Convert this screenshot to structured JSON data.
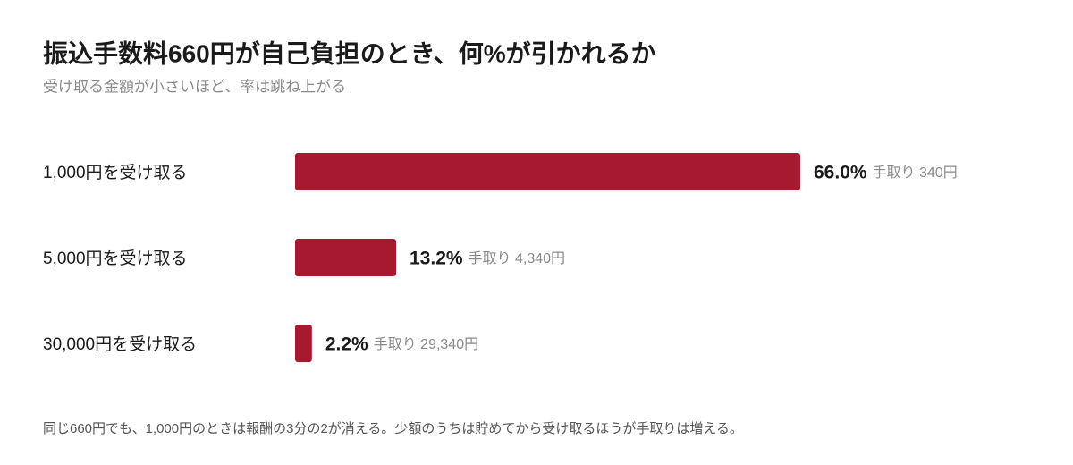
{
  "chart_data": {
    "type": "hbar",
    "title": "振込手数料660円が自己負担のとき、何%が引かれるか",
    "subtitle": "受け取る金額が小さいほど、率は跳ね上がる",
    "categories": [
      "1,000円を受け取る",
      "5,000円を受け取る",
      "30,000円を受け取る"
    ],
    "values": [
      66.0,
      13.2,
      2.2
    ],
    "value_labels": [
      "66.0%",
      "13.2%",
      "2.2%"
    ],
    "net_labels": [
      "手取り 340円",
      "手取り 4,340円",
      "手取り 29,340円"
    ],
    "color": "#a6192e",
    "footnote": "同じ660円でも、1,000円のときは報酬の3分の2が消える。少額のうちは貯めてから受け取るほうが手取りは増える。"
  }
}
